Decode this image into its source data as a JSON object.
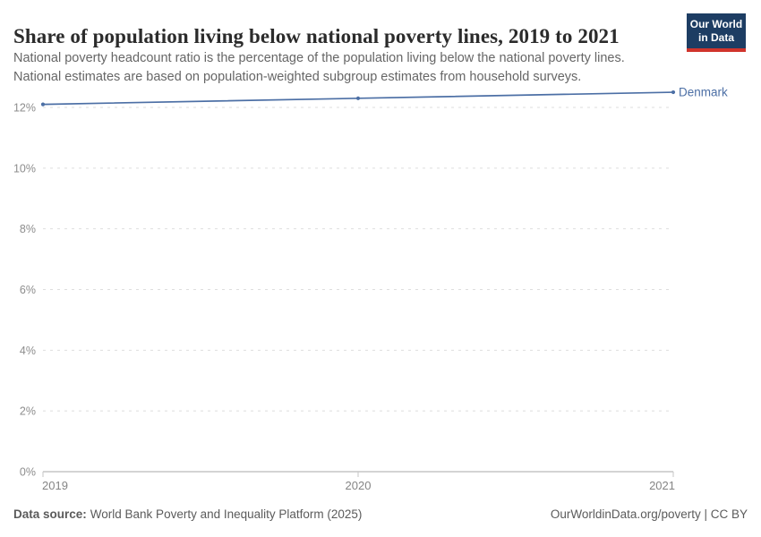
{
  "header": {
    "logo": {
      "line1": "Our World",
      "line2": "in Data",
      "bg_color": "#1d3d63",
      "bar_color": "#d0342c"
    }
  },
  "chart_data": {
    "type": "line",
    "title": "Share of population living below national poverty lines, 2019 to 2021",
    "subtitle_lines": [
      "National poverty headcount ratio is the percentage of the population living below the national poverty lines.",
      "National estimates are based on population-weighted subgroup estimates from household surveys."
    ],
    "x": [
      2019,
      2020,
      2021
    ],
    "xtick_labels": [
      "2019",
      "2020",
      "2021"
    ],
    "series": [
      {
        "name": "Denmark",
        "color": "#4c6fa5",
        "values": [
          12.1,
          12.3,
          12.5
        ]
      }
    ],
    "xlabel": "",
    "ylabel": "",
    "ylim": [
      0,
      12
    ],
    "yticks": [
      0,
      2,
      4,
      6,
      8,
      10,
      12
    ],
    "ytick_labels": [
      "0%",
      "2%",
      "4%",
      "6%",
      "8%",
      "10%",
      "12%"
    ],
    "grid": "horizontal-dashed",
    "legend": "line-end-label"
  },
  "footer": {
    "source_label": "Data source:",
    "source_text": "World Bank Poverty and Inequality Platform (2025)",
    "right_text": "OurWorldinData.org/poverty | CC BY"
  }
}
